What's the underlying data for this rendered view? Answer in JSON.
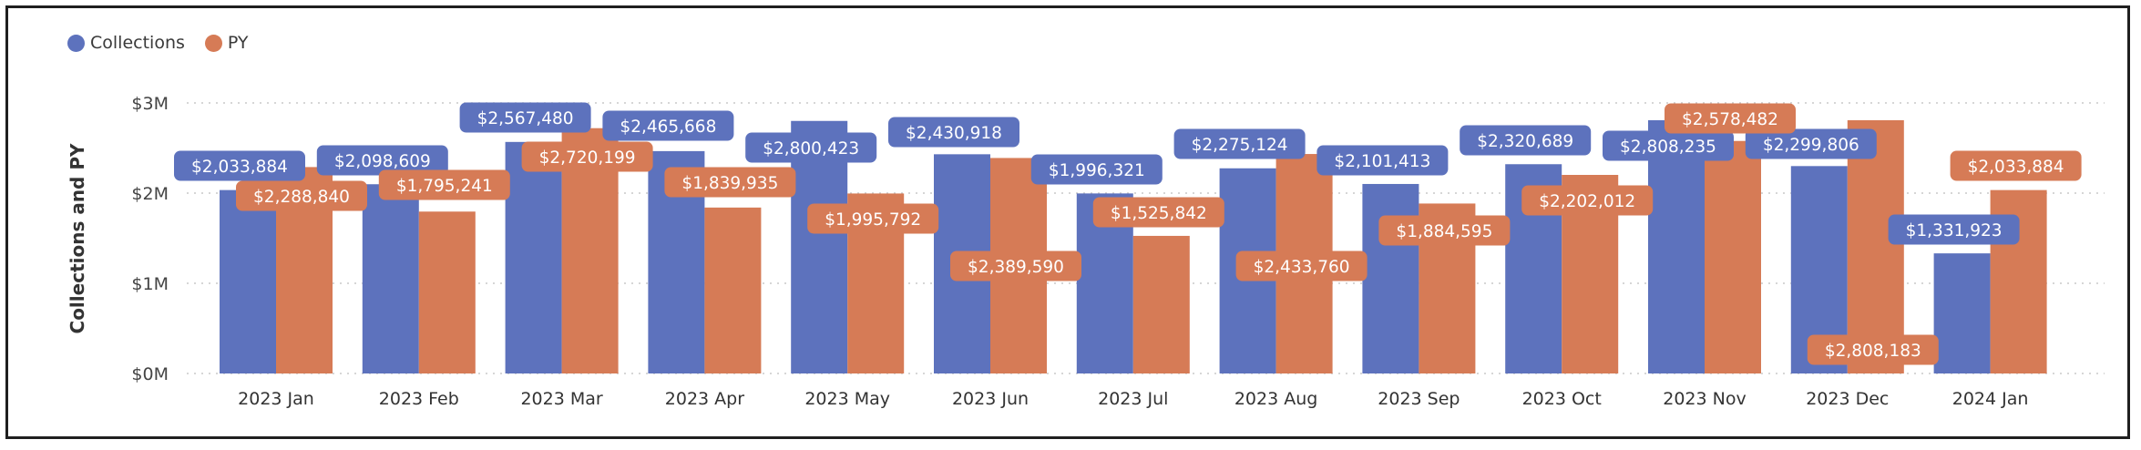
{
  "colors": {
    "collections": "#5d72bd",
    "py": "#d67b56",
    "grid": "#c9c9c9"
  },
  "legend": {
    "collections_label": "Collections",
    "py_label": "PY"
  },
  "chart_data": {
    "type": "bar",
    "categories": [
      "2023 Jan",
      "2023 Feb",
      "2023 Mar",
      "2023 Apr",
      "2023 May",
      "2023 Jun",
      "2023 Jul",
      "2023 Aug",
      "2023 Sep",
      "2023 Oct",
      "2023 Nov",
      "2023 Dec",
      "2024 Jan"
    ],
    "series": [
      {
        "name": "Collections",
        "values": [
          2033884,
          2098609,
          2567480,
          2465668,
          2800423,
          2430918,
          1996321,
          2275124,
          2101413,
          2320689,
          2808235,
          2299806,
          1331923
        ],
        "labels": [
          "$2,033,884",
          "$2,098,609",
          "$2,567,480",
          "$2,465,668",
          "$2,800,423",
          "$2,430,918",
          "$1,996,321",
          "$2,275,124",
          "$2,101,413",
          "$2,320,689",
          "$2,808,235",
          "$2,299,806",
          "$1,331,923"
        ]
      },
      {
        "name": "PY",
        "values": [
          2288840,
          1795241,
          2720199,
          1839935,
          1995792,
          2389590,
          1525842,
          2433760,
          1884595,
          2202012,
          2578482,
          2808183,
          2033884
        ],
        "labels": [
          "$2,288,840",
          "$1,795,241",
          "$2,720,199",
          "$1,839,935",
          "$1,995,792",
          "$2,389,590",
          "$1,525,842",
          "$2,433,760",
          "$1,884,595",
          "$2,202,012",
          "$2,578,482",
          "$2,808,183",
          "$2,033,884"
        ]
      }
    ],
    "ylabel": "Collections and PY",
    "xlabel": "",
    "ylim": [
      0,
      3000000
    ],
    "yticks": [
      {
        "value": 0,
        "label": "$0M"
      },
      {
        "value": 1000000,
        "label": "$1M"
      },
      {
        "value": 2000000,
        "label": "$2M"
      },
      {
        "value": 3000000,
        "label": "$3M"
      }
    ],
    "grid": true,
    "legend_position": "top-left"
  }
}
